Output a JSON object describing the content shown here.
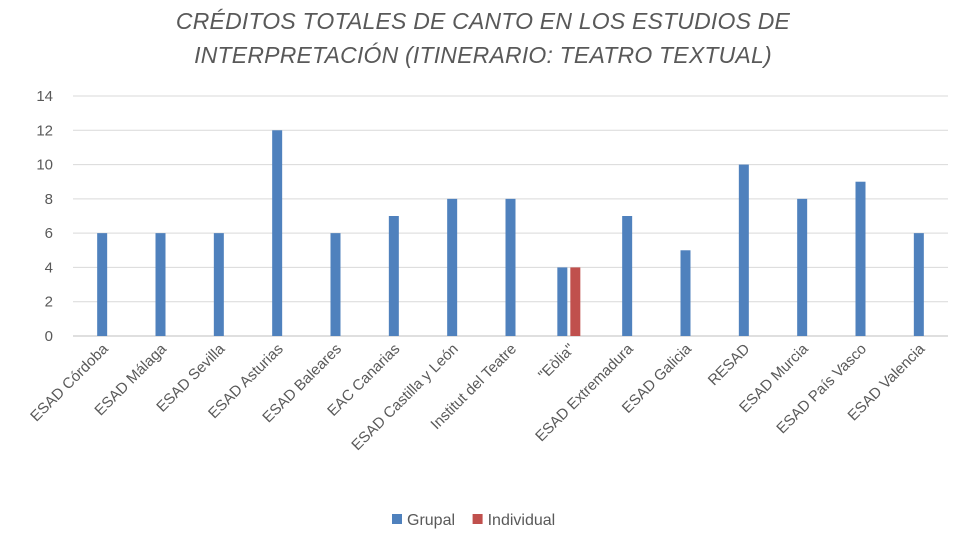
{
  "chart_data": {
    "type": "bar",
    "title": "CRÉDITOS TOTALES DE CANTO EN LOS ESTUDIOS DE INTERPRETACIÓN (ITINERARIO: TEATRO TEXTUAL)",
    "title_lines": [
      "CRÉDITOS TOTALES DE CANTO EN LOS ESTUDIOS DE",
      "INTERPRETACIÓN (ITINERARIO: TEATRO TEXTUAL)"
    ],
    "categories": [
      "ESAD Córdoba",
      "ESAD Málaga",
      "ESAD Sevilla",
      "ESAD Asturias",
      "ESAD Baleares",
      "EAC Canarias",
      "ESAD Castilla y León",
      "Institut del Teatre",
      "\"Eòlia\"",
      "ESAD Extremadura",
      "ESAD Galicia",
      "RESAD",
      "ESAD Murcia",
      "ESAD País Vasco",
      "ESAD Valencia"
    ],
    "series": [
      {
        "name": "Grupal",
        "color": "#4F81BD",
        "values": [
          6,
          6,
          6,
          12,
          6,
          7,
          8,
          8,
          4,
          7,
          5,
          10,
          8,
          9,
          6
        ]
      },
      {
        "name": "Individual",
        "color": "#C0504D",
        "values": [
          null,
          null,
          null,
          null,
          null,
          null,
          null,
          null,
          4,
          null,
          null,
          null,
          null,
          null,
          null
        ]
      }
    ],
    "ylim": [
      0,
      14
    ],
    "yticks": [
      0,
      2,
      4,
      6,
      8,
      10,
      12,
      14
    ],
    "grid": true,
    "legend": "bottom",
    "xlabel": "",
    "ylabel": ""
  }
}
